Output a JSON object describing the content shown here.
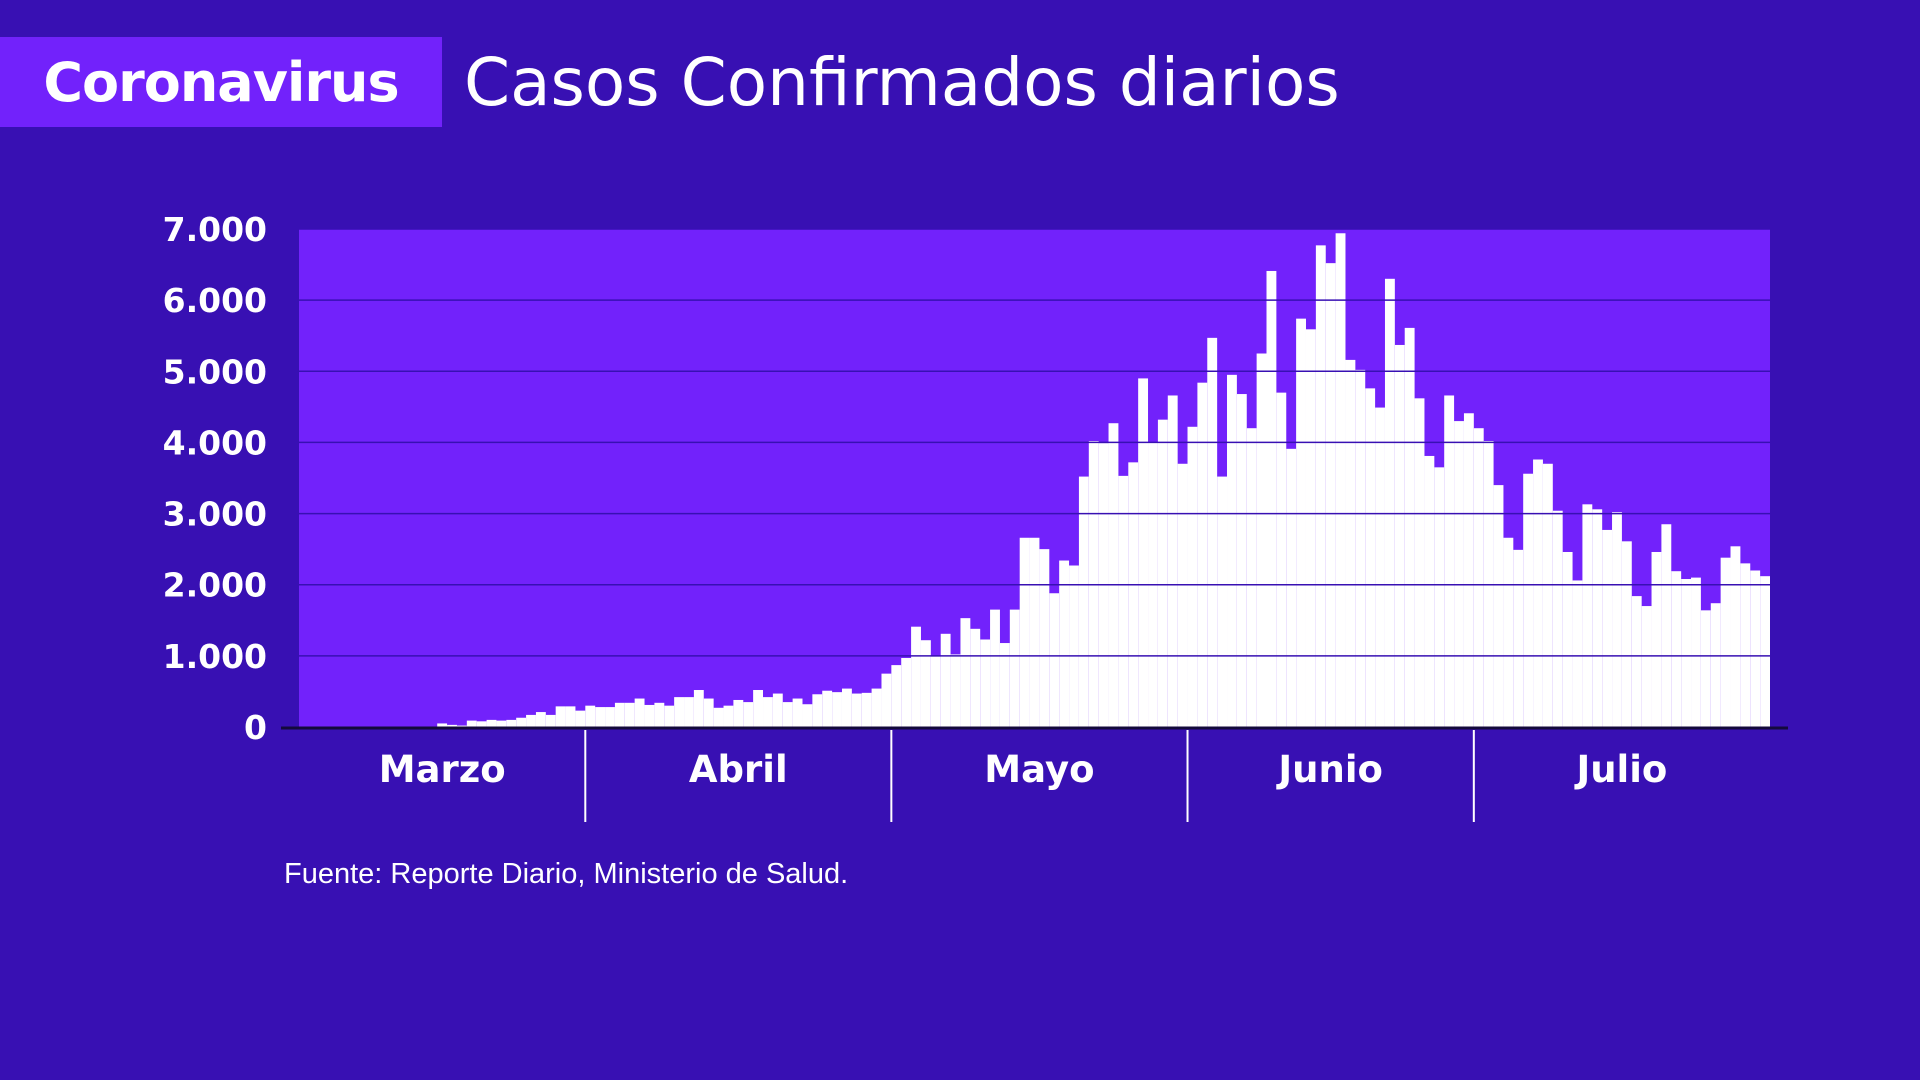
{
  "header": {
    "tag": "Coronavirus",
    "title": "Casos Confirmados diarios"
  },
  "source": "Fuente: Reporte Diario, Ministerio de Salud.",
  "colors": {
    "background": "#3810b3",
    "plot_area": "#7222fb",
    "bars": "#ffffff",
    "gridlines": "#3810b3"
  },
  "chart_data": {
    "type": "bar",
    "x_unit": "day",
    "ylim": [
      0,
      7000
    ],
    "yticks": [
      0,
      1000,
      2000,
      3000,
      4000,
      5000,
      6000,
      7000
    ],
    "ytick_labels": [
      "0",
      "1.000",
      "2.000",
      "3.000",
      "4.000",
      "5.000",
      "6.000",
      "7.000"
    ],
    "grid": true,
    "legend": "none",
    "months": [
      "Marzo",
      "Abril",
      "Mayo",
      "Junio",
      "Julio"
    ],
    "month_start_index": [
      0,
      29,
      60,
      90,
      119
    ],
    "values": [
      0,
      0,
      0,
      0,
      0,
      0,
      0,
      0,
      0,
      0,
      0,
      0,
      0,
      0,
      50,
      30,
      20,
      90,
      80,
      100,
      90,
      100,
      130,
      170,
      210,
      170,
      290,
      290,
      230,
      300,
      280,
      280,
      340,
      340,
      400,
      310,
      340,
      300,
      420,
      420,
      520,
      400,
      270,
      300,
      380,
      350,
      520,
      420,
      470,
      350,
      400,
      320,
      460,
      510,
      490,
      540,
      470,
      480,
      540,
      750,
      870,
      970,
      1410,
      1220,
      990,
      1310,
      1020,
      1530,
      1380,
      1230,
      1650,
      1180,
      1650,
      2660,
      2660,
      2500,
      1880,
      2340,
      2270,
      3520,
      4020,
      3990,
      4270,
      3530,
      3720,
      4900,
      4000,
      4320,
      4660,
      3700,
      4220,
      4840,
      5470,
      3520,
      4950,
      4680,
      4200,
      5250,
      6410,
      4700,
      3910,
      5740,
      5590,
      6770,
      6520,
      6940,
      5160,
      5020,
      4760,
      4490,
      6300,
      5370,
      5610,
      4620,
      3810,
      3650,
      4660,
      4300,
      4410,
      4200,
      4020,
      3400,
      2660,
      2490,
      3560,
      3760,
      3700,
      3040,
      2460,
      2060,
      3130,
      3060,
      2770,
      3020,
      2610,
      1840,
      1700,
      2460,
      2850,
      2190,
      2080,
      2100,
      1640,
      1740,
      2380,
      2540,
      2300,
      2200,
      2120
    ]
  }
}
